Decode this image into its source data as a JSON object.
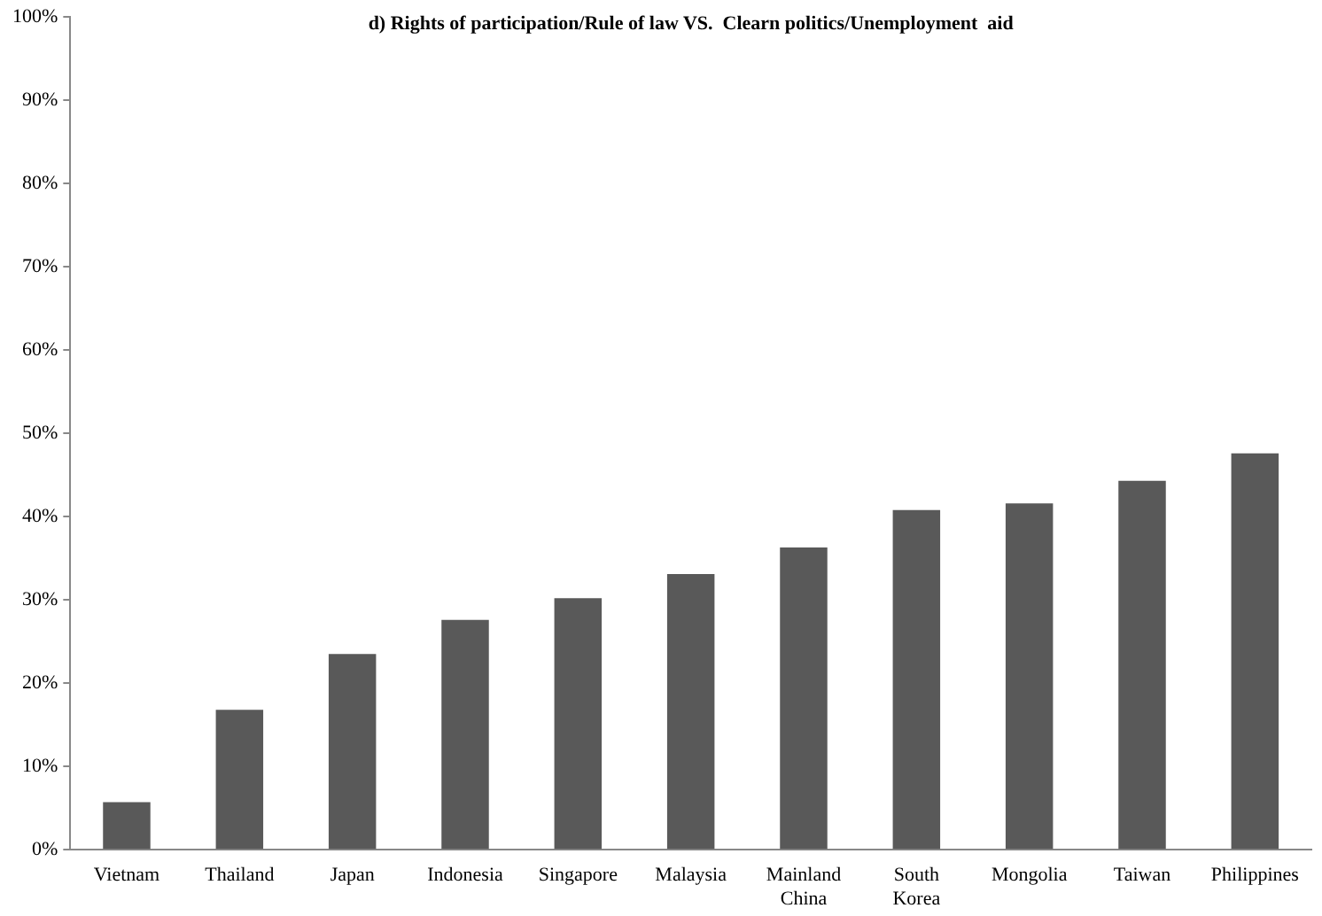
{
  "chart_data": {
    "type": "bar",
    "title": "d) Rights of participation/Rule of law VS.  Clearn politics/Unemployment  aid",
    "categories": [
      "Vietnam",
      "Thailand",
      "Japan",
      "Indonesia",
      "Singapore",
      "Malaysia",
      "Mainland China",
      "South Korea",
      "Mongolia",
      "Taiwan",
      "Philippines"
    ],
    "values": [
      5.7,
      16.8,
      23.5,
      27.6,
      30.2,
      33.1,
      36.3,
      40.8,
      41.6,
      44.3,
      47.6
    ],
    "color": "#595959",
    "ylim": [
      0,
      100
    ],
    "yticks": [
      {
        "value": 0,
        "label": "0%"
      },
      {
        "value": 10,
        "label": "10%"
      },
      {
        "value": 20,
        "label": "20%"
      },
      {
        "value": 30,
        "label": "30%"
      },
      {
        "value": 40,
        "label": "40%"
      },
      {
        "value": 50,
        "label": "50%"
      },
      {
        "value": 60,
        "label": "60%"
      },
      {
        "value": 70,
        "label": "70%"
      },
      {
        "value": 80,
        "label": "80%"
      },
      {
        "value": 90,
        "label": "90%"
      },
      {
        "value": 100,
        "label": "100%"
      }
    ],
    "grid": false,
    "legend": false
  }
}
